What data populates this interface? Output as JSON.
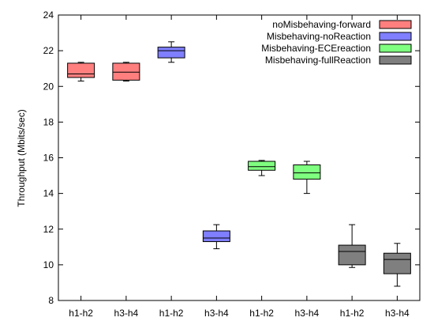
{
  "chart_data": {
    "type": "boxplot",
    "title": "",
    "xlabel": "",
    "ylabel": "Throughput (Mbits/sec)",
    "ylim": [
      8,
      24
    ],
    "yticks": [
      8,
      10,
      12,
      14,
      16,
      18,
      20,
      22,
      24
    ],
    "grid": false,
    "legend_position": "top-right",
    "categories": [
      "h1-h2",
      "h3-h4",
      "h1-h2",
      "h3-h4",
      "h1-h2",
      "h3-h4",
      "h1-h2",
      "h3-h4"
    ],
    "series": [
      {
        "name": "noMisbehaving-forward",
        "color": "#ff7f7f",
        "boxes": [
          {
            "category_index": 0,
            "min": 20.3,
            "q1": 20.5,
            "median": 20.7,
            "q3": 21.3,
            "max": 21.35
          },
          {
            "category_index": 1,
            "min": 20.3,
            "q1": 20.35,
            "median": 20.8,
            "q3": 21.3,
            "max": 21.35
          }
        ]
      },
      {
        "name": "Misbehaving-noReaction",
        "color": "#7f7fff",
        "boxes": [
          {
            "category_index": 2,
            "min": 21.35,
            "q1": 21.6,
            "median": 22.0,
            "q3": 22.2,
            "max": 22.5
          },
          {
            "category_index": 3,
            "min": 10.9,
            "q1": 11.3,
            "median": 11.5,
            "q3": 11.9,
            "max": 12.25
          }
        ]
      },
      {
        "name": "Misbehaving-ECEreaction",
        "color": "#7fff7f",
        "boxes": [
          {
            "category_index": 4,
            "min": 15.0,
            "q1": 15.3,
            "median": 15.5,
            "q3": 15.8,
            "max": 15.85
          },
          {
            "category_index": 5,
            "min": 14.0,
            "q1": 14.8,
            "median": 15.15,
            "q3": 15.6,
            "max": 15.8
          }
        ]
      },
      {
        "name": "Misbehaving-fullReaction",
        "color": "#7f7f7f",
        "boxes": [
          {
            "category_index": 6,
            "min": 9.85,
            "q1": 10.0,
            "median": 10.75,
            "q3": 11.1,
            "max": 12.25
          },
          {
            "category_index": 7,
            "min": 8.8,
            "q1": 9.5,
            "median": 10.3,
            "q3": 10.65,
            "max": 11.2
          }
        ]
      }
    ]
  }
}
